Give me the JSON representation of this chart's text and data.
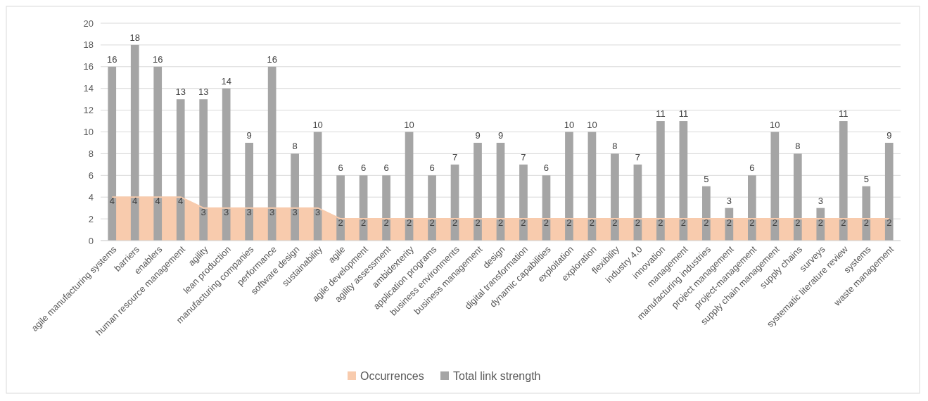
{
  "chart_data": {
    "type": "bar",
    "categories": [
      "agile manufacturing systems",
      "barriers",
      "enablers",
      "human resource management",
      "agility",
      "lean production",
      "manufacturing companies",
      "performance",
      "software design",
      "sustainability",
      "agile",
      "agile development",
      "agility assessment",
      "ambidexterity",
      "application programs",
      "business environments",
      "business management",
      "design",
      "digital transformation",
      "dynamic capabilities",
      "exploitation",
      "exploration",
      "flexibility",
      "industry 4.0",
      "innovation",
      "management",
      "manufacturing industries",
      "project management",
      "project-management",
      "supply chain management",
      "supply chains",
      "surveys",
      "systematic literature review",
      "systems",
      "waste management"
    ],
    "series": [
      {
        "name": "Occurrences",
        "type": "area",
        "color": "#f8cbad",
        "values": [
          4,
          4,
          4,
          4,
          3,
          3,
          3,
          3,
          3,
          3,
          2,
          2,
          2,
          2,
          2,
          2,
          2,
          2,
          2,
          2,
          2,
          2,
          2,
          2,
          2,
          2,
          2,
          2,
          2,
          2,
          2,
          2,
          2,
          2,
          2
        ]
      },
      {
        "name": "Total link strength",
        "color": "#a5a5a5",
        "values": [
          16,
          18,
          16,
          13,
          13,
          14,
          9,
          16,
          8,
          10,
          6,
          6,
          6,
          10,
          6,
          7,
          9,
          9,
          7,
          6,
          10,
          10,
          8,
          7,
          11,
          11,
          5,
          3,
          6,
          10,
          8,
          3,
          11,
          5,
          9
        ]
      }
    ],
    "ylim": [
      0,
      20
    ],
    "yticks": [
      0,
      2,
      4,
      6,
      8,
      10,
      12,
      14,
      16,
      18,
      20
    ],
    "grid": "y",
    "legend": "bottom",
    "data_labels": true
  }
}
